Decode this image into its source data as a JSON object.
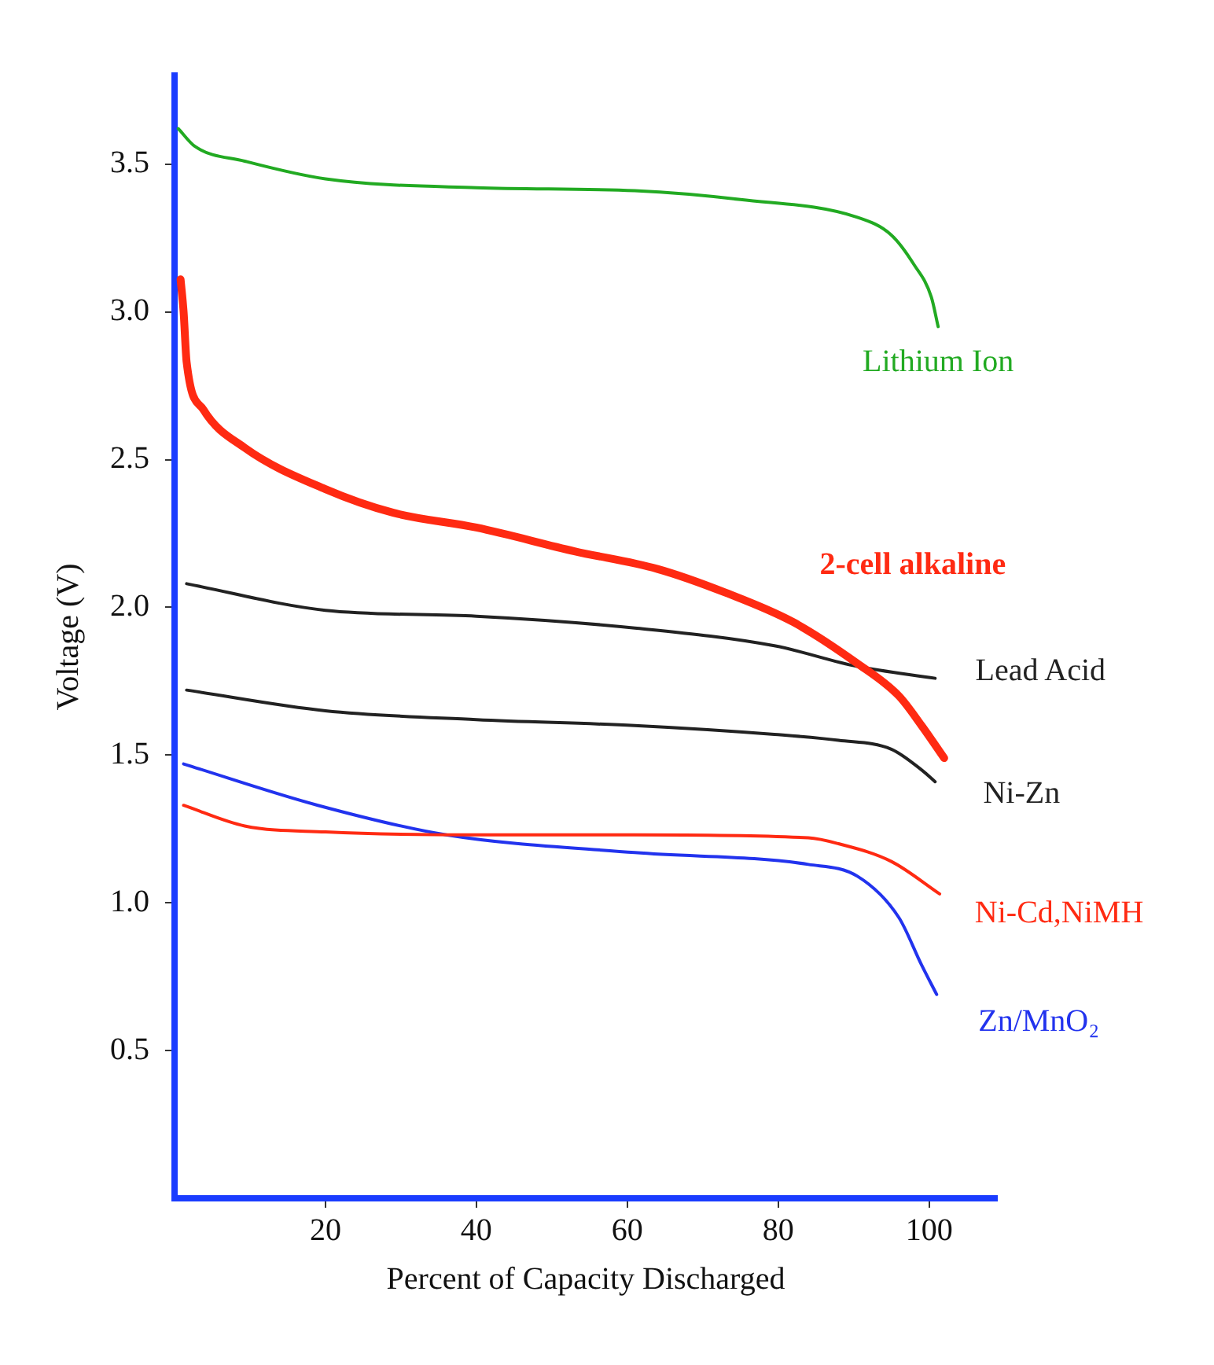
{
  "chart_data": {
    "type": "line",
    "xlabel": "Percent of Capacity Discharged",
    "ylabel": "Voltage (V)",
    "xlim": [
      0,
      109
    ],
    "xticks": [
      20,
      40,
      60,
      80,
      100
    ],
    "ylim": [
      0,
      3.8
    ],
    "yticks": [
      {
        "value": 0.5,
        "label": "0.5"
      },
      {
        "value": 1,
        "label": "1.0"
      },
      {
        "value": 1.5,
        "label": "1.5"
      },
      {
        "value": 2,
        "label": "2.0"
      },
      {
        "value": 2.5,
        "label": "2.5"
      },
      {
        "value": 3,
        "label": "3.0"
      },
      {
        "value": 3.5,
        "label": "3.5"
      }
    ],
    "grid": false,
    "legend": false,
    "marker": "none",
    "line_style": "solid",
    "series": [
      {
        "name": "Lithium Ion",
        "color": "#22aa22",
        "x": [
          0.5,
          2.7,
          9.3,
          20,
          40,
          61,
          75,
          90.5,
          95,
          98,
          100.3,
          101.2
        ],
        "values": [
          3.62,
          3.56,
          3.51,
          3.45,
          3.42,
          3.41,
          3.38,
          3.32,
          3.26,
          3.16,
          3.05,
          2.95
        ]
      },
      {
        "name": "2-cell alkaline",
        "color": "#ff2a12",
        "x": [
          0.8,
          1.2,
          1.6,
          3.8,
          9.3,
          20,
          29,
          40,
          53,
          64,
          73,
          82,
          90.5,
          96,
          99,
          102
        ],
        "values": [
          3.11,
          3.0,
          2.83,
          2.67,
          2.54,
          2.4,
          2.32,
          2.27,
          2.19,
          2.13,
          2.05,
          1.95,
          1.81,
          1.7,
          1.6,
          1.49
        ]
      },
      {
        "name": "Lead Acid",
        "color": "#222222",
        "x": [
          1.6,
          20,
          40,
          61,
          79.5,
          90.5,
          100.8
        ],
        "values": [
          2.08,
          1.99,
          1.97,
          1.93,
          1.87,
          1.8,
          1.76
        ]
      },
      {
        "name": "Ni-Zn",
        "color": "#222222",
        "x": [
          1.6,
          20,
          40,
          61,
          79.5,
          88,
          95,
          99,
          100.8
        ],
        "values": [
          1.72,
          1.65,
          1.62,
          1.6,
          1.57,
          1.55,
          1.52,
          1.45,
          1.41
        ]
      },
      {
        "name": "Ni-Cd,NiMH",
        "color": "#ff2a12",
        "x": [
          1.2,
          9.3,
          20,
          40,
          61,
          84,
          88,
          95,
          101.4
        ],
        "values": [
          1.33,
          1.26,
          1.24,
          1.23,
          1.23,
          1.22,
          1.2,
          1.14,
          1.03
        ]
      },
      {
        "name": "Zn/MnO₂",
        "color": "#2233ee",
        "x": [
          1.2,
          19,
          36,
          61,
          84,
          90.5,
          96,
          99,
          101
        ],
        "values": [
          1.47,
          1.33,
          1.23,
          1.17,
          1.13,
          1.09,
          0.95,
          0.79,
          0.69
        ]
      }
    ]
  }
}
